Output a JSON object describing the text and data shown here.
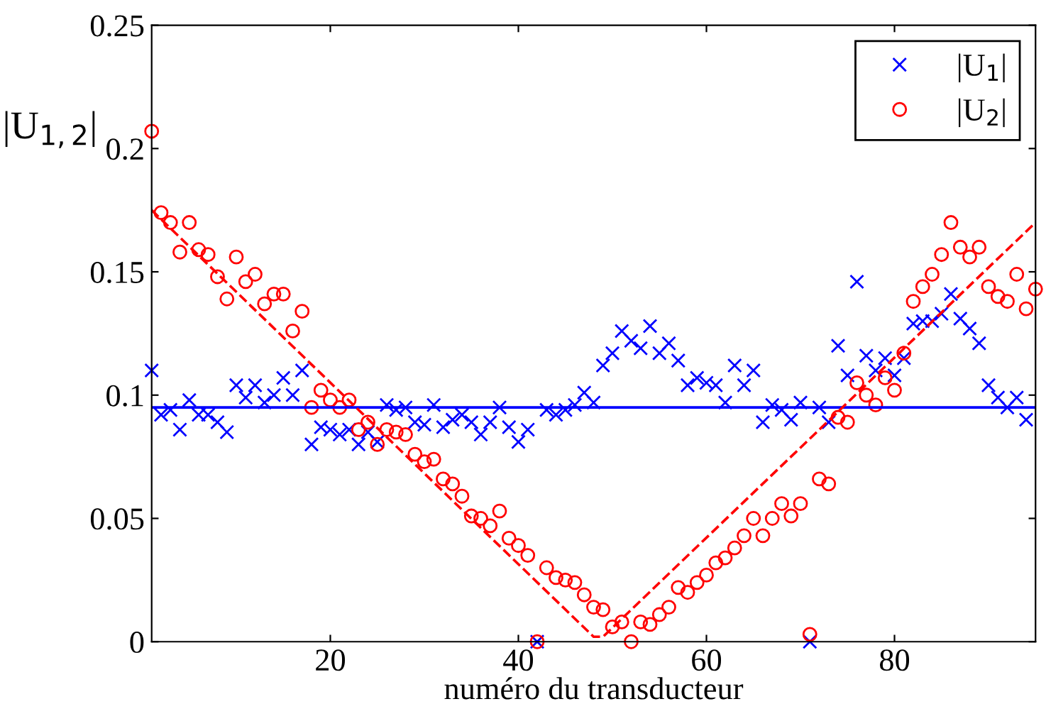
{
  "chart_data": {
    "type": "scatter",
    "xlabel": "numéro du transducteur",
    "ylabel": "|U$_{1,2}$|",
    "xlim": [
      1,
      95
    ],
    "ylim": [
      0,
      0.25
    ],
    "xticks": [
      20,
      40,
      60,
      80
    ],
    "yticks": [
      0,
      0.05,
      0.1,
      0.15,
      0.2,
      0.25
    ],
    "grid": false,
    "legend": "top right",
    "series": [
      {
        "name": "|U$_{1}$|",
        "marker": "cross",
        "color": "#0000ff",
        "x": [
          1,
          2,
          3,
          4,
          5,
          6,
          7,
          8,
          9,
          10,
          11,
          12,
          13,
          14,
          15,
          16,
          17,
          18,
          19,
          20,
          21,
          22,
          23,
          24,
          25,
          26,
          27,
          28,
          29,
          30,
          31,
          32,
          33,
          34,
          35,
          36,
          37,
          38,
          39,
          40,
          41,
          42,
          43,
          44,
          45,
          46,
          47,
          48,
          49,
          50,
          51,
          52,
          53,
          54,
          55,
          56,
          57,
          58,
          59,
          60,
          61,
          62,
          63,
          64,
          65,
          66,
          67,
          68,
          69,
          70,
          71,
          72,
          73,
          74,
          75,
          76,
          77,
          78,
          79,
          80,
          81,
          82,
          83,
          84,
          85,
          86,
          87,
          88,
          89,
          90,
          91,
          92,
          93,
          94
        ],
        "values": [
          0.11,
          0.092,
          0.094,
          0.086,
          0.098,
          0.092,
          0.092,
          0.089,
          0.085,
          0.104,
          0.099,
          0.104,
          0.097,
          0.1,
          0.107,
          0.1,
          0.11,
          0.08,
          0.087,
          0.086,
          0.084,
          0.086,
          0.08,
          0.085,
          0.081,
          0.096,
          0.094,
          0.095,
          0.089,
          0.088,
          0.096,
          0.087,
          0.09,
          0.092,
          0.089,
          0.084,
          0.089,
          0.095,
          0.087,
          0.081,
          0.086,
          0.0,
          0.094,
          0.092,
          0.094,
          0.096,
          0.101,
          0.097,
          0.112,
          0.117,
          0.126,
          0.122,
          0.119,
          0.128,
          0.117,
          0.121,
          0.114,
          0.104,
          0.107,
          0.105,
          0.104,
          0.097,
          0.112,
          0.104,
          0.11,
          0.089,
          0.096,
          0.094,
          0.09,
          0.097,
          0.0,
          0.095,
          0.089,
          0.12,
          0.108,
          0.146,
          0.116,
          0.11,
          0.115,
          0.108,
          0.115,
          0.129,
          0.13,
          0.13,
          0.133,
          0.141,
          0.131,
          0.127,
          0.121,
          0.104,
          0.099,
          0.095,
          0.099,
          0.09
        ]
      },
      {
        "name": "|U$_{2}$|",
        "marker": "circle",
        "color": "#ff0000",
        "x": [
          1,
          2,
          3,
          4,
          5,
          6,
          7,
          8,
          9,
          10,
          11,
          12,
          13,
          14,
          15,
          16,
          17,
          18,
          19,
          20,
          21,
          22,
          23,
          24,
          25,
          26,
          27,
          28,
          29,
          30,
          31,
          32,
          33,
          34,
          35,
          36,
          37,
          38,
          39,
          40,
          41,
          42,
          43,
          44,
          45,
          46,
          47,
          48,
          49,
          50,
          51,
          52,
          53,
          54,
          55,
          56,
          57,
          58,
          59,
          60,
          61,
          62,
          63,
          64,
          65,
          66,
          67,
          68,
          69,
          70,
          71,
          72,
          73,
          74,
          75,
          76,
          77,
          78,
          79,
          80,
          81,
          82,
          83,
          84,
          85,
          86,
          87,
          88,
          89,
          90,
          91,
          92,
          93,
          94,
          95
        ],
        "values": [
          0.207,
          0.174,
          0.17,
          0.158,
          0.17,
          0.159,
          0.157,
          0.148,
          0.139,
          0.156,
          0.146,
          0.149,
          0.137,
          0.141,
          0.141,
          0.126,
          0.134,
          0.095,
          0.102,
          0.098,
          0.095,
          0.098,
          0.086,
          0.089,
          0.08,
          0.086,
          0.085,
          0.084,
          0.076,
          0.073,
          0.074,
          0.066,
          0.064,
          0.059,
          0.051,
          0.05,
          0.047,
          0.053,
          0.042,
          0.039,
          0.035,
          0.0,
          0.03,
          0.026,
          0.025,
          0.024,
          0.019,
          0.014,
          0.013,
          0.006,
          0.008,
          0.0,
          0.008,
          0.007,
          0.011,
          0.014,
          0.022,
          0.02,
          0.024,
          0.027,
          0.032,
          0.034,
          0.038,
          0.043,
          0.05,
          0.043,
          0.05,
          0.056,
          0.051,
          0.056,
          0.003,
          0.066,
          0.064,
          0.091,
          0.089,
          0.105,
          0.1,
          0.096,
          0.107,
          0.102,
          0.117,
          0.138,
          0.144,
          0.149,
          0.157,
          0.17,
          0.16,
          0.156,
          0.16,
          0.144,
          0.14,
          0.138,
          0.149,
          0.135,
          0.143
        ]
      },
      {
        "type": "line",
        "line_style": "solid",
        "color": "#0000ff",
        "x": [
          1,
          95
        ],
        "values": [
          0.095,
          0.095
        ]
      },
      {
        "type": "line",
        "line_style": "dashed",
        "color": "#ff0000",
        "x": [
          1,
          48,
          49,
          95
        ],
        "values": [
          0.175,
          0.002,
          0.002,
          0.17
        ]
      }
    ]
  }
}
